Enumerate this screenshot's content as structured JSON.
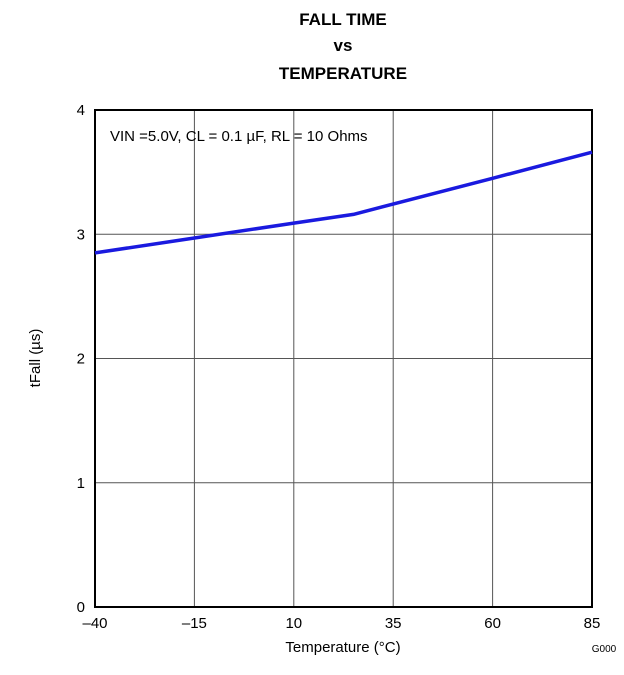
{
  "chart_data": {
    "type": "line",
    "title": [
      "FALL TIME",
      "vs",
      "TEMPERATURE"
    ],
    "xlabel": "Temperature (°C)",
    "ylabel": "tFall (µs)",
    "xlim": [
      -40,
      85
    ],
    "ylim": [
      0,
      4
    ],
    "x_ticks": [
      -40,
      -15,
      10,
      35,
      60,
      85
    ],
    "x_tick_labels": [
      "–40",
      "–15",
      "10",
      "35",
      "60",
      "85"
    ],
    "y_ticks": [
      0,
      1,
      2,
      3,
      4
    ],
    "y_tick_labels": [
      "0",
      "1",
      "2",
      "3",
      "4"
    ],
    "grid": true,
    "annotation": "VIN =5.0V, CL = 0.1 µF, RL = 10 Ohms",
    "figure_code": "G000",
    "series": [
      {
        "color": "#1a1adf",
        "x": [
          -40,
          -15,
          10,
          25,
          60,
          85
        ],
        "y": [
          2.85,
          2.97,
          3.09,
          3.16,
          3.45,
          3.66
        ]
      }
    ]
  }
}
